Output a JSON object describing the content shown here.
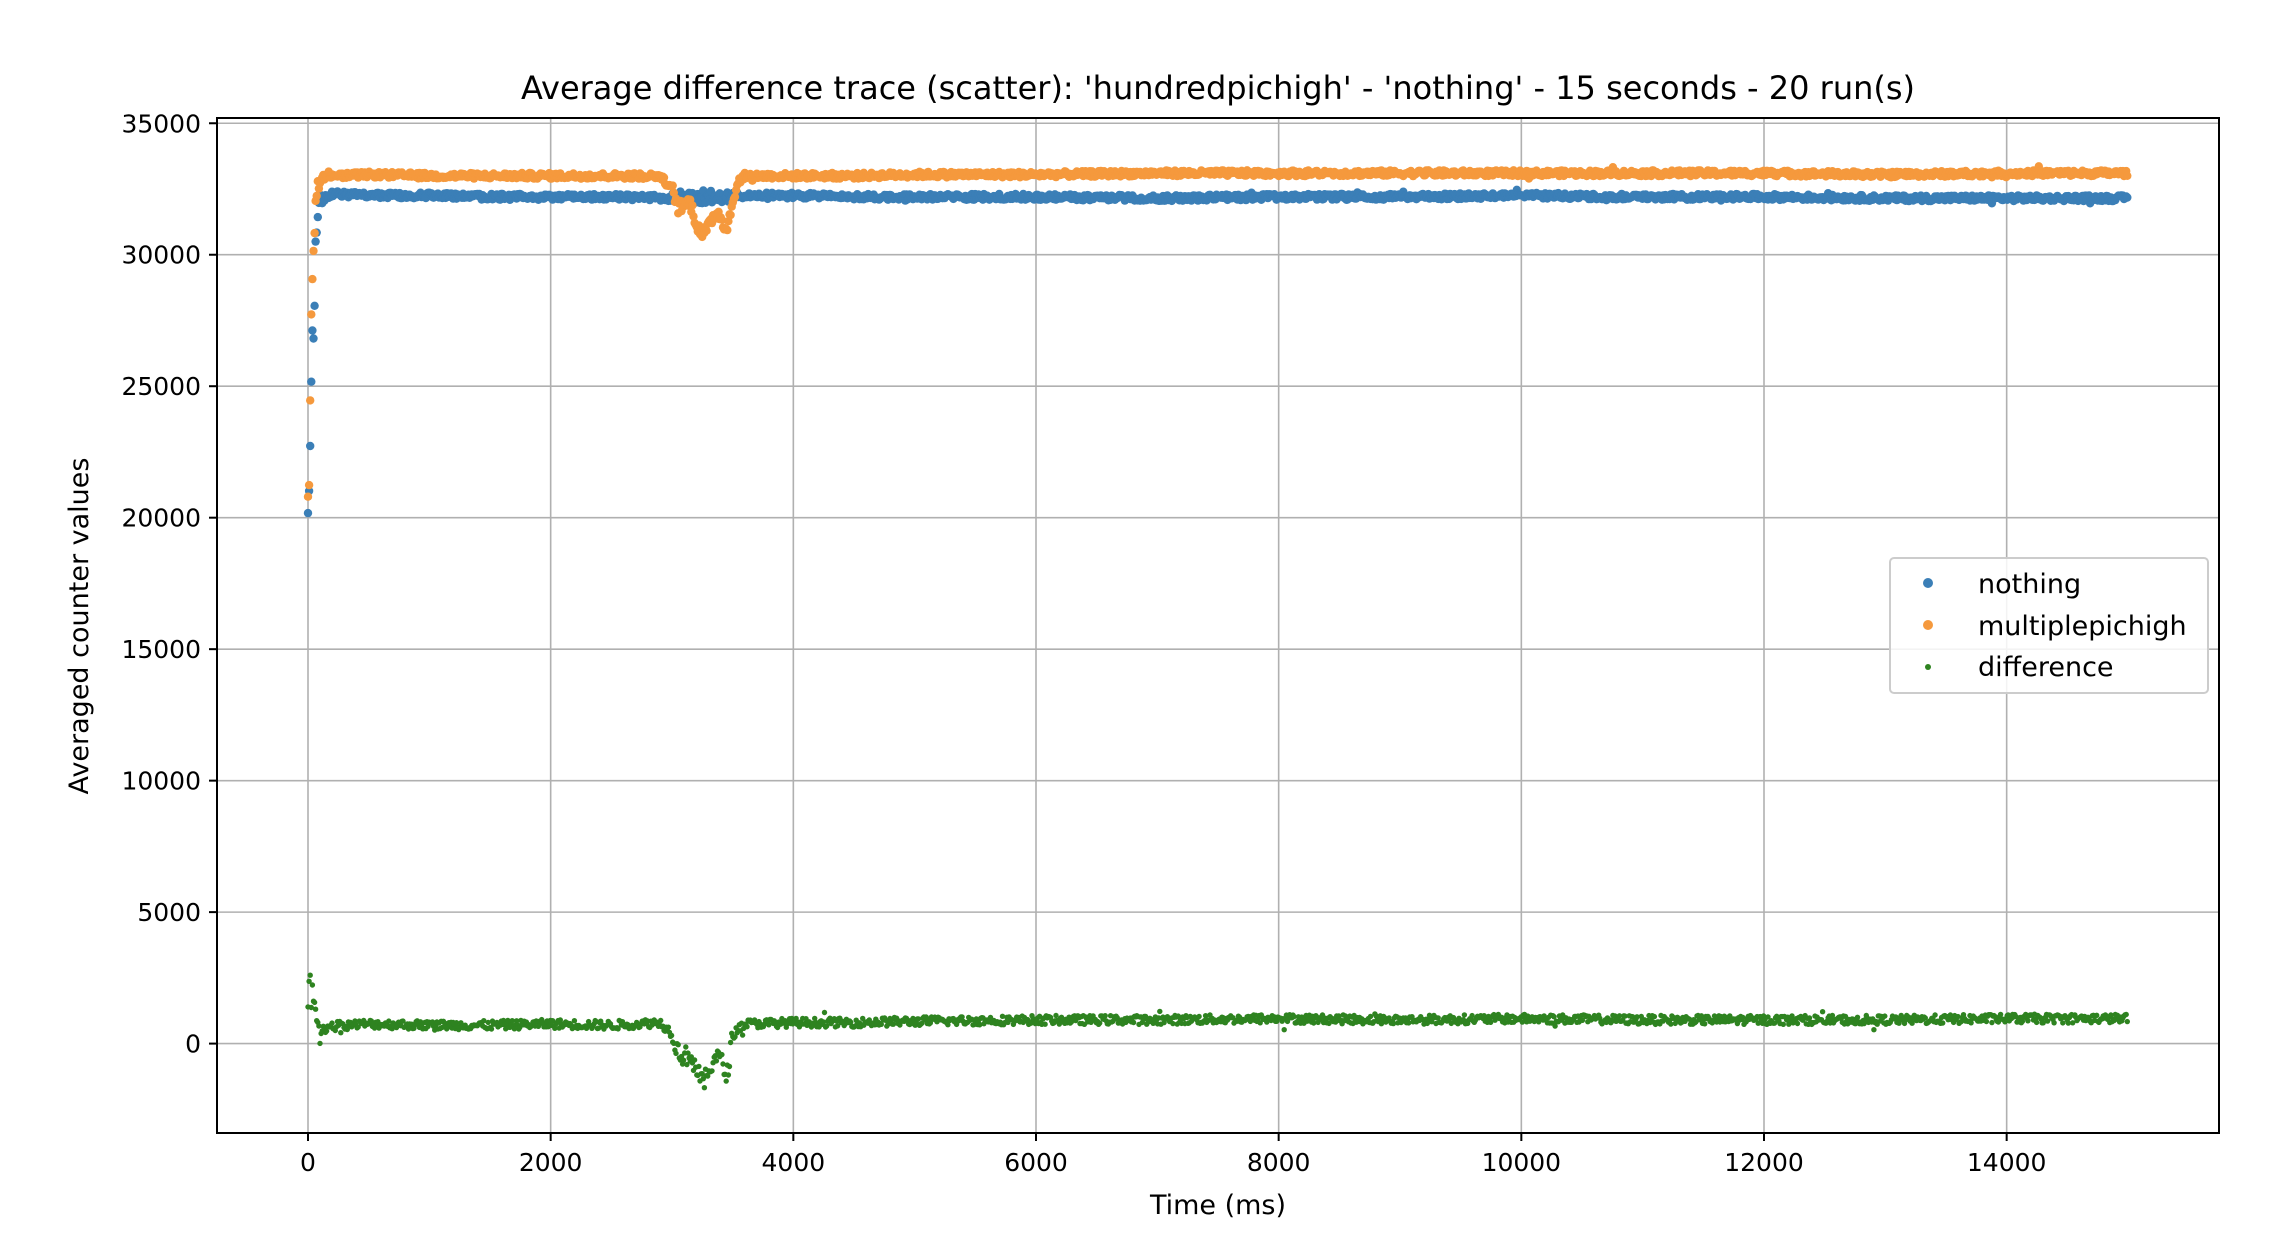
{
  "chart_data": {
    "type": "scatter",
    "title": "Average difference trace (scatter): 'hundredpichigh' - 'nothing' - 15 seconds - 20 run(s)",
    "xlabel": "Time (ms)",
    "ylabel": "Averaged counter values",
    "xlim": [
      -750,
      15750
    ],
    "ylim": [
      -3400,
      35200
    ],
    "x_ticks": [
      0,
      2000,
      4000,
      6000,
      8000,
      10000,
      12000,
      14000
    ],
    "y_ticks": [
      0,
      5000,
      10000,
      15000,
      20000,
      25000,
      30000,
      35000
    ],
    "x_tick_labels": [
      "0",
      "2000",
      "4000",
      "6000",
      "8000",
      "10000",
      "12000",
      "14000"
    ],
    "y_tick_labels": [
      "0",
      "5000",
      "10000",
      "15000",
      "20000",
      "25000",
      "30000",
      "35000"
    ],
    "grid": true,
    "legend_position": "right",
    "series": [
      {
        "name": "nothing",
        "color": "#3b7fb7",
        "marker": "large-dot",
        "x": [
          0,
          10,
          20,
          30,
          40,
          50,
          60,
          80,
          100,
          150,
          200,
          300,
          500,
          1000,
          1500,
          2000,
          2500,
          3000,
          3100,
          3200,
          3300,
          3400,
          3500,
          3800,
          4000,
          4500,
          5000,
          6000,
          7000,
          8000,
          9000,
          10000,
          11000,
          12000,
          13000,
          14000,
          15000
        ],
        "values": [
          20000,
          21000,
          23000,
          26000,
          27500,
          26500,
          30500,
          31500,
          32000,
          32200,
          32300,
          32300,
          32250,
          32250,
          32200,
          32200,
          32200,
          32150,
          32200,
          32200,
          32200,
          32200,
          32250,
          32250,
          32250,
          32200,
          32200,
          32200,
          32150,
          32200,
          32200,
          32250,
          32200,
          32200,
          32150,
          32150,
          32150
        ]
      },
      {
        "name": "multiplepichigh",
        "color": "#f5993d",
        "marker": "large-dot",
        "x": [
          0,
          10,
          20,
          30,
          40,
          50,
          60,
          80,
          100,
          150,
          200,
          300,
          500,
          1000,
          1500,
          2000,
          2500,
          2900,
          3000,
          3050,
          3100,
          3150,
          3200,
          3250,
          3300,
          3350,
          3400,
          3450,
          3500,
          3550,
          3600,
          4000,
          4500,
          5000,
          6000,
          7000,
          8000,
          9000,
          10000,
          11000,
          12000,
          13000,
          14000,
          15000
        ],
        "values": [
          20900,
          21500,
          24900,
          29000,
          29500,
          30500,
          32000,
          32600,
          32900,
          33000,
          33000,
          33000,
          33050,
          33000,
          33000,
          33000,
          33000,
          33000,
          32500,
          31800,
          31900,
          32000,
          31200,
          30800,
          31000,
          31600,
          31500,
          30900,
          32000,
          32800,
          33000,
          33000,
          33000,
          33050,
          33050,
          33100,
          33100,
          33100,
          33100,
          33100,
          33100,
          33050,
          33100,
          33100
        ]
      },
      {
        "name": "difference",
        "color": "#2e8320",
        "marker": "small-dot",
        "x": [
          0,
          10,
          20,
          30,
          40,
          50,
          60,
          80,
          100,
          150,
          200,
          300,
          500,
          1000,
          1500,
          2000,
          2500,
          2900,
          3000,
          3050,
          3100,
          3150,
          3200,
          3250,
          3300,
          3350,
          3400,
          3450,
          3500,
          3550,
          3600,
          4000,
          4500,
          5000,
          6000,
          7000,
          8000,
          9000,
          10000,
          11000,
          12000,
          13000,
          14000,
          15000
        ],
        "values": [
          900,
          2800,
          2000,
          1800,
          1700,
          2500,
          1000,
          700,
          500,
          600,
          650,
          700,
          750,
          700,
          700,
          750,
          700,
          800,
          400,
          -300,
          -500,
          -400,
          -1000,
          -1500,
          -1200,
          -400,
          -600,
          -1300,
          300,
          600,
          750,
          800,
          800,
          850,
          900,
          900,
          950,
          900,
          950,
          900,
          900,
          900,
          950,
          950
        ]
      }
    ]
  }
}
